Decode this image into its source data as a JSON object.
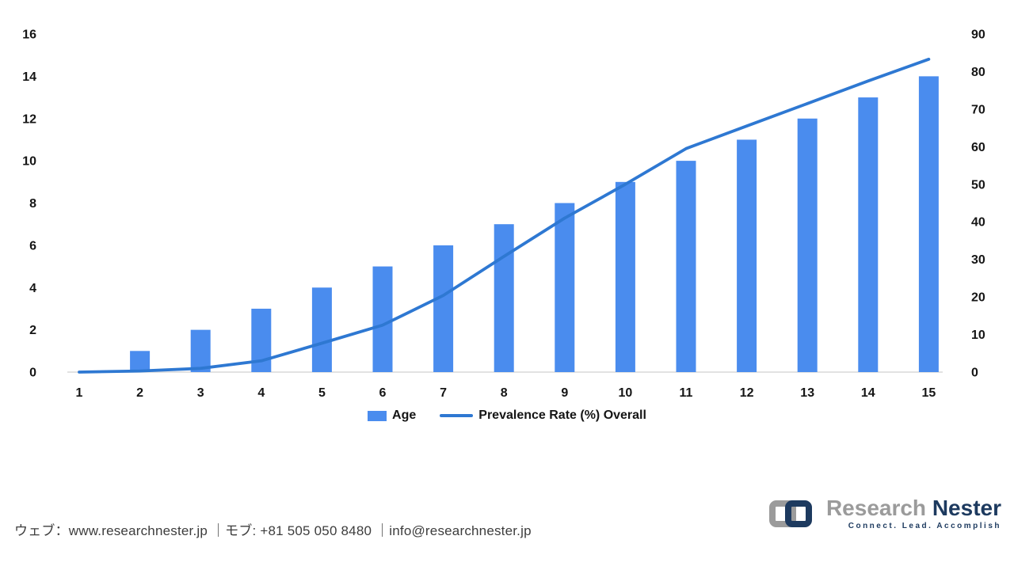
{
  "chart_data": {
    "type": "bar",
    "subtype": "combo-bar-line-dual-axis",
    "title": "",
    "categories": [
      "1",
      "2",
      "3",
      "4",
      "5",
      "6",
      "7",
      "8",
      "9",
      "10",
      "11",
      "12",
      "13",
      "14",
      "15"
    ],
    "series": [
      {
        "name": "Age",
        "type": "bar",
        "axis": "left",
        "color": "#4a8cee",
        "values": [
          0,
          1,
          2,
          3,
          4,
          5,
          6,
          7,
          8,
          9,
          10,
          11,
          12,
          13,
          14
        ]
      },
      {
        "name": "Prevalence Rate (%) Overall",
        "type": "line",
        "axis": "right",
        "color": "#2e78d2",
        "values": [
          0,
          0.3,
          1,
          3,
          7.7,
          12.5,
          20.4,
          30.8,
          41,
          50,
          59.5,
          65.5,
          71.5,
          77.5,
          83.3
        ]
      }
    ],
    "left_axis": {
      "min": 0,
      "max": 16,
      "step": 2,
      "tick_labels": [
        "0",
        "2",
        "4",
        "6",
        "8",
        "10",
        "12",
        "14",
        "16"
      ]
    },
    "right_axis": {
      "min": 0,
      "max": 90,
      "step": 10,
      "tick_labels": [
        "0",
        "10",
        "20",
        "30",
        "40",
        "50",
        "60",
        "70",
        "80",
        "90"
      ]
    },
    "xlabel": "",
    "ylabel": "",
    "grid": "baseline-only",
    "baseline_color": "#d9d9d9",
    "tick_color": "#151515",
    "legend_position": "bottom-center"
  },
  "legend": {
    "bar_label": "Age",
    "line_label": "Prevalence Rate (%) Overall"
  },
  "footer": {
    "contact": "ウェブ：www.researchnester.jp ｜モブ: +81 505 050 8480 ｜info@researchnester.jp"
  },
  "logo": {
    "brand_primary": "Research",
    "brand_secondary": "Nester",
    "tagline": "Connect. Lead. Accomplish",
    "gray": "#9b9b9b",
    "navy": "#1d3a5f"
  }
}
